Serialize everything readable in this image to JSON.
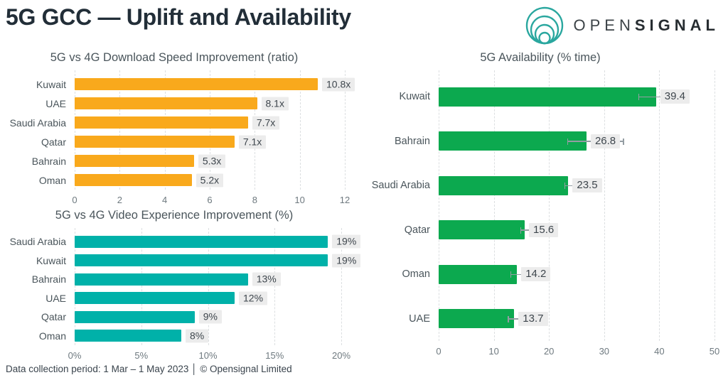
{
  "header": {
    "title": "5G GCC — Uplift and Availability",
    "logo": {
      "open": "OPEN",
      "signal": "SIGNAL",
      "mark_color": "#2aa79f"
    }
  },
  "footer": {
    "text": "Data collection period: 1 Mar – 1 May 2023 │ © Opensignal Limited"
  },
  "colors": {
    "orange": "#f9a91c",
    "teal": "#00b1a9",
    "green": "#0ca94f",
    "value_label_bg": "#ececec",
    "text_dark": "#4a555b",
    "tick_text": "#6e797f"
  },
  "chart_data": [
    {
      "type": "bar",
      "orientation": "horizontal",
      "title": "5G vs 4G Download Speed Improvement (ratio)",
      "categories": [
        "Kuwait",
        "UAE",
        "Saudi Arabia",
        "Qatar",
        "Bahrain",
        "Oman"
      ],
      "values": [
        10.8,
        8.1,
        7.7,
        7.1,
        5.3,
        5.2
      ],
      "value_labels": [
        "10.8x",
        "8.1x",
        "7.7x",
        "7.1x",
        "5.3x",
        "5.2x"
      ],
      "xlim": [
        0,
        12
      ],
      "xticks": [
        0,
        2,
        4,
        6,
        8,
        10,
        12
      ],
      "xtick_labels": [
        "0",
        "2",
        "4",
        "6",
        "8",
        "10",
        "12"
      ],
      "bar_color": "#f9a91c",
      "grid": true,
      "legend": "none"
    },
    {
      "type": "bar",
      "orientation": "horizontal",
      "title": "5G vs 4G Video Experience Improvement (%)",
      "categories": [
        "Saudi Arabia",
        "Kuwait",
        "Bahrain",
        "UAE",
        "Qatar",
        "Oman"
      ],
      "values": [
        19,
        19,
        13,
        12,
        9,
        8
      ],
      "value_labels": [
        "19%",
        "19%",
        "13%",
        "12%",
        "9%",
        "8%"
      ],
      "xlim": [
        0,
        20
      ],
      "xticks": [
        0,
        5,
        10,
        15,
        20
      ],
      "xtick_labels": [
        "0%",
        "5%",
        "10%",
        "15%",
        "20%"
      ],
      "bar_color": "#00b1a9",
      "grid": true,
      "legend": "none"
    },
    {
      "type": "bar",
      "orientation": "horizontal",
      "title": "5G Availability (% time)",
      "categories": [
        "Kuwait",
        "Bahrain",
        "Saudi Arabia",
        "Qatar",
        "Oman",
        "UAE"
      ],
      "values": [
        39.4,
        26.8,
        23.5,
        15.6,
        14.2,
        13.7
      ],
      "value_labels": [
        "39.4",
        "26.8",
        "23.5",
        "15.6",
        "14.2",
        "13.7"
      ],
      "error_bars": [
        [
          36.2,
          42.0
        ],
        [
          23.3,
          33.6
        ],
        [
          22.8,
          26.2
        ],
        [
          14.8,
          17.2
        ],
        [
          13.0,
          15.6
        ],
        [
          12.5,
          15.1
        ]
      ],
      "xlim": [
        0,
        50
      ],
      "xticks": [
        0,
        10,
        20,
        30,
        40,
        50
      ],
      "xtick_labels": [
        "0",
        "10",
        "20",
        "30",
        "40",
        "50"
      ],
      "bar_color": "#0ca94f",
      "grid": true,
      "legend": "none"
    }
  ]
}
